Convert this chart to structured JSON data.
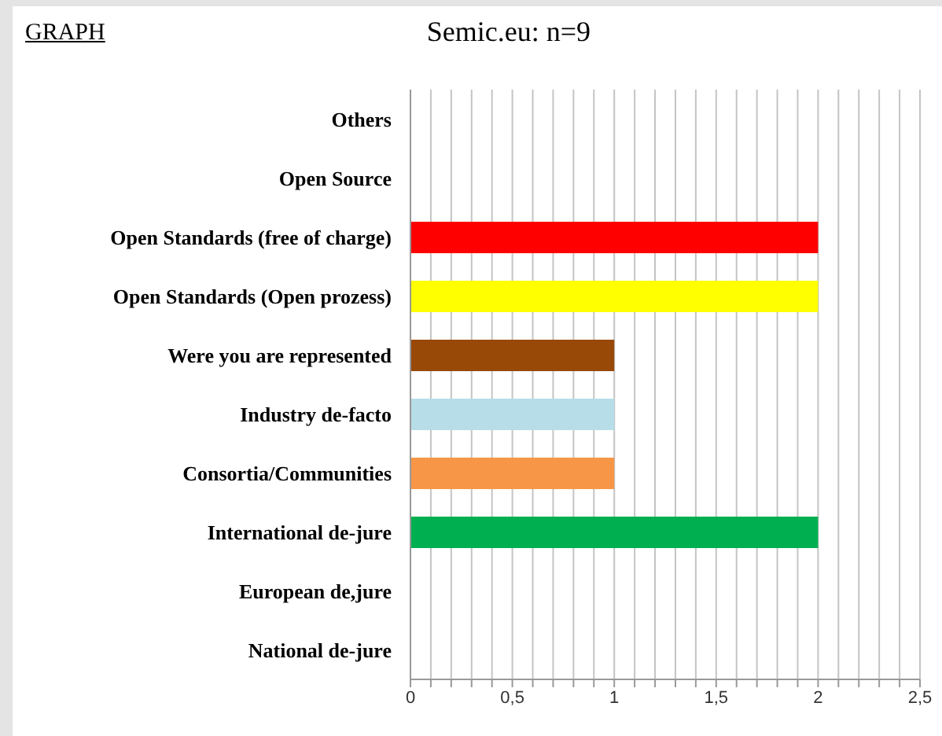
{
  "chart_data": {
    "type": "bar",
    "orientation": "horizontal",
    "title": "Semic.eu: n=9",
    "annotations": [
      "GRAPH"
    ],
    "categories": [
      "Others",
      "Open Source",
      "Open Standards (free of charge)",
      "Open Standards (Open prozess)",
      "Were you are represented",
      "Industry de-facto",
      "Consortia/Communities",
      "International de-jure",
      "European de,jure",
      "National de-jure"
    ],
    "values": [
      0,
      0,
      2,
      2,
      1,
      1,
      1,
      2,
      0,
      0
    ],
    "colors": [
      null,
      null,
      "#ff0000",
      "#ffff00",
      "#984807",
      "#b7dde8",
      "#f79646",
      "#00b050",
      null,
      null
    ],
    "xlim": [
      0,
      2.5
    ],
    "xticks": [
      0,
      {
        "value": 0.1,
        "label": null
      },
      {
        "value": 0.2,
        "label": null
      },
      {
        "value": 0.3,
        "label": null
      },
      {
        "value": 0.4,
        "label": null
      },
      {
        "value": 0.5,
        "label": "0,5"
      },
      {
        "value": 0.6,
        "label": null
      },
      {
        "value": 0.7,
        "label": null
      },
      {
        "value": 0.8,
        "label": null
      },
      {
        "value": 0.9,
        "label": null
      },
      1,
      {
        "value": 1.1,
        "label": null
      },
      {
        "value": 1.2,
        "label": null
      },
      {
        "value": 1.3,
        "label": null
      },
      {
        "value": 1.4,
        "label": null
      },
      {
        "value": 1.5,
        "label": "1,5"
      },
      {
        "value": 1.6,
        "label": null
      },
      {
        "value": 1.7,
        "label": null
      },
      {
        "value": 1.8,
        "label": null
      },
      {
        "value": 1.9,
        "label": null
      },
      2,
      {
        "value": 2.1,
        "label": null
      },
      {
        "value": 2.2,
        "label": null
      },
      {
        "value": 2.3,
        "label": null
      },
      {
        "value": 2.4,
        "label": null
      },
      {
        "value": 2.5,
        "label": "2,5"
      }
    ],
    "grid": "x"
  }
}
